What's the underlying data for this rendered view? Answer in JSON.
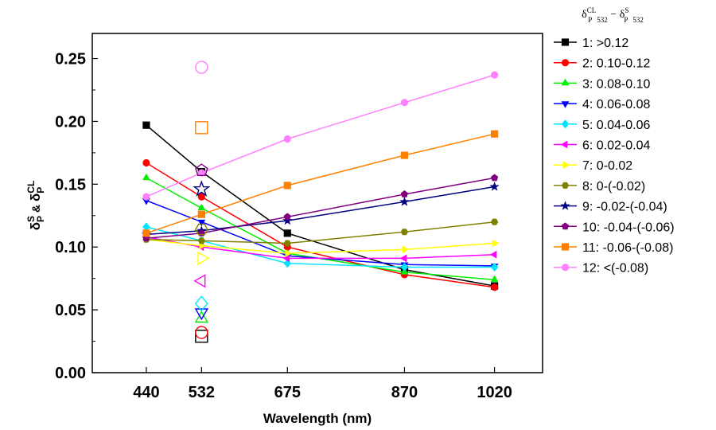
{
  "chart_data": {
    "type": "line",
    "xlabel": "Wavelength (nm)",
    "ylabel": {
      "text": "δ_P^S & δ_P^CL",
      "delta": "δ",
      "sub1": "P",
      "sup1": "S",
      "amp": " & ",
      "sub2": "P",
      "sup2": "CL"
    },
    "x_categories": [
      "440",
      "532",
      "675",
      "870",
      "1020"
    ],
    "x_values": [
      440,
      532,
      675,
      870,
      1020
    ],
    "xlim": [
      350,
      1100
    ],
    "ylim": [
      0,
      0.27
    ],
    "y_ticks": [
      0.0,
      0.05,
      0.1,
      0.15,
      0.2,
      0.25
    ],
    "y_tick_labels": [
      "0.00",
      "0.05",
      "0.10",
      "0.15",
      "0.20",
      "0.25"
    ],
    "grid": false,
    "legend_position": "right outside",
    "legend_title": {
      "text": "δ_P 532^CL − δ_P 532^S",
      "delta": "δ",
      "sub_a": "P",
      "sub_b": "532",
      "sup_cl": "CL",
      "minus": " − ",
      "sup_s": "S"
    },
    "series": [
      {
        "name": "1: >0.12",
        "color": "#000000",
        "marker": "square",
        "lidar_532": 0.029,
        "x": [
          440,
          532,
          675,
          870,
          1020
        ],
        "values": [
          0.197,
          0.16,
          0.111,
          0.082,
          0.069
        ]
      },
      {
        "name": "2: 0.10-0.12",
        "color": "#ff0000",
        "marker": "circle",
        "lidar_532": 0.032,
        "x": [
          440,
          532,
          675,
          870,
          1020
        ],
        "values": [
          0.167,
          0.14,
          0.1,
          0.078,
          0.068
        ]
      },
      {
        "name": "3: 0.08-0.10",
        "color": "#00ee00",
        "marker": "triangle-up",
        "lidar_532": 0.043,
        "x": [
          440,
          532,
          675,
          870,
          1020
        ],
        "values": [
          0.155,
          0.131,
          0.095,
          0.08,
          0.074
        ]
      },
      {
        "name": "4: 0.06-0.08",
        "color": "#0000ff",
        "marker": "triangle-down",
        "lidar_532": 0.048,
        "x": [
          440,
          532,
          675,
          870,
          1020
        ],
        "values": [
          0.137,
          0.12,
          0.093,
          0.086,
          0.085
        ]
      },
      {
        "name": "5: 0.04-0.06",
        "color": "#00e5ff",
        "marker": "diamond",
        "lidar_532": 0.055,
        "x": [
          440,
          532,
          675,
          870,
          1020
        ],
        "values": [
          0.116,
          0.105,
          0.087,
          0.084,
          0.084
        ]
      },
      {
        "name": "6: 0.02-0.04",
        "color": "#ff00ff",
        "marker": "triangle-left",
        "lidar_532": 0.073,
        "x": [
          440,
          532,
          675,
          870,
          1020
        ],
        "values": [
          0.108,
          0.1,
          0.091,
          0.091,
          0.094
        ]
      },
      {
        "name": "7: 0-0.02",
        "color": "#ffff00",
        "marker": "triangle-right",
        "lidar_532": 0.091,
        "x": [
          440,
          532,
          675,
          870,
          1020
        ],
        "values": [
          0.106,
          0.101,
          0.095,
          0.098,
          0.103
        ]
      },
      {
        "name": "8: 0-(-0.02)",
        "color": "#808000",
        "marker": "hexagon",
        "lidar_532": 0.114,
        "x": [
          440,
          532,
          675,
          870,
          1020
        ],
        "values": [
          0.106,
          0.105,
          0.103,
          0.112,
          0.12
        ]
      },
      {
        "name": "9: -0.02-(-0.04)",
        "color": "#000080",
        "marker": "star",
        "lidar_532": 0.146,
        "x": [
          440,
          532,
          675,
          870,
          1020
        ],
        "values": [
          0.11,
          0.113,
          0.121,
          0.136,
          0.148
        ]
      },
      {
        "name": "10: -0.04-(-0.06)",
        "color": "#800080",
        "marker": "pentagon",
        "lidar_532": 0.161,
        "x": [
          440,
          532,
          675,
          870,
          1020
        ],
        "values": [
          0.107,
          0.111,
          0.124,
          0.142,
          0.155
        ]
      },
      {
        "name": "11: -0.06-(-0.08)",
        "color": "#ff8000",
        "marker": "square",
        "lidar_532": 0.195,
        "x": [
          440,
          532,
          675,
          870,
          1020
        ],
        "values": [
          0.111,
          0.126,
          0.149,
          0.173,
          0.19
        ]
      },
      {
        "name": "12: <(-0.08)",
        "color": "#ff80ff",
        "marker": "circle",
        "lidar_532": 0.243,
        "x": [
          440,
          532,
          675,
          870,
          1020
        ],
        "values": [
          0.14,
          0.159,
          0.186,
          0.215,
          0.237
        ]
      }
    ]
  }
}
